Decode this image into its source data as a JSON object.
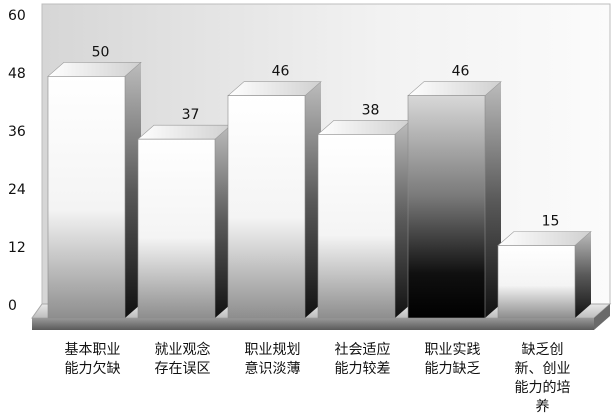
{
  "chart_data": {
    "type": "bar",
    "categories": [
      [
        "基本职业",
        "能力欠缺"
      ],
      [
        "就业观念",
        "存在误区"
      ],
      [
        "职业规划",
        "意识淡薄"
      ],
      [
        "社会适应",
        "能力较差"
      ],
      [
        "职业实践",
        "能力缺乏"
      ],
      [
        "缺乏创",
        "新、创业",
        "能力的培",
        "养"
      ]
    ],
    "values": [
      50,
      37,
      46,
      38,
      46,
      15
    ],
    "data_labels": [
      "50",
      "37",
      "46",
      "38",
      "46",
      "15"
    ],
    "y_ticks": [
      "0",
      "12",
      "24",
      "36",
      "48",
      "60"
    ],
    "ylim": [
      0,
      60
    ],
    "grid": false,
    "legend": "none",
    "title": "",
    "xlabel": "",
    "ylabel": "",
    "style": "3d-gradient"
  }
}
